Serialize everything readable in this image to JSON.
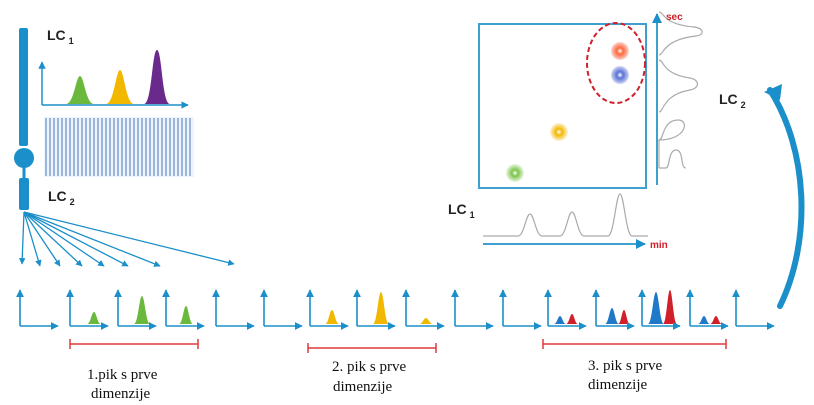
{
  "labels": {
    "lc1_top": "LC",
    "lc1_top_sub": "1",
    "lc2_left": "LC",
    "lc2_left_sub": "2",
    "lc2_right": "LC",
    "lc2_right_sub": "2",
    "lc1_bottom": "LC",
    "lc1_bottom_sub": "1",
    "axis_sec": "sec",
    "axis_min": "min"
  },
  "groups": [
    {
      "line1": "1.pik s prve",
      "line2": "dimenzije"
    },
    {
      "line1": "2. pik s prve",
      "line2": "dimenzije"
    },
    {
      "line1": "3. pik s prve",
      "line2": "dimenzije"
    }
  ],
  "colors": {
    "blue": "#1a8fc9",
    "green": "#6ab83c",
    "yellow": "#f2b800",
    "purple": "#6a2a8c",
    "red": "#d0202a",
    "darkblue": "#1f78c8",
    "gray": "#9a9a9a"
  }
}
